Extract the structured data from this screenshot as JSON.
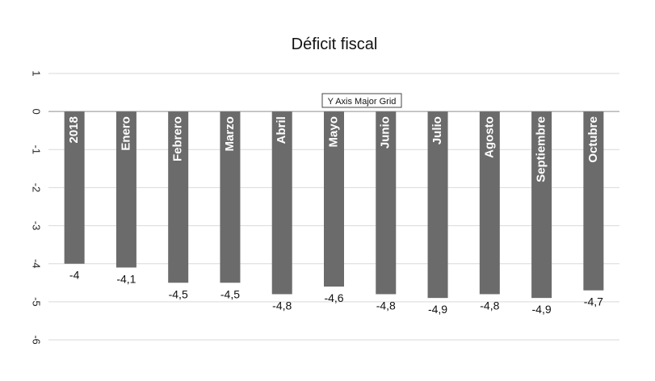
{
  "chart_data": {
    "type": "bar",
    "title": "Déficit fiscal",
    "xlabel": "",
    "ylabel": "",
    "ylim": [
      -6,
      1
    ],
    "yticks": [
      1,
      0,
      -1,
      -2,
      -3,
      -4,
      -5,
      -6
    ],
    "grid": true,
    "categories": [
      "2018",
      "Enero",
      "Febrero",
      "Marzo",
      "Abril",
      "Mayo",
      "Junio",
      "Julio",
      "Agosto",
      "Septiembre",
      "Octubre"
    ],
    "values": [
      -4,
      -4.1,
      -4.5,
      -4.5,
      -4.8,
      -4.6,
      -4.8,
      -4.9,
      -4.8,
      -4.9,
      -4.7
    ],
    "data_labels": [
      "-4",
      "-4,1",
      "-4,5",
      "-4,5",
      "-4,8",
      "-4,6",
      "-4,8",
      "-4,9",
      "-4,8",
      "-4,9",
      "-4,7"
    ],
    "bar_color": "#6b6b6b",
    "grid_color": "#d9d9d9",
    "zero_line_color": "#a6a6a6",
    "tooltip": "Y Axis Major Grid"
  }
}
